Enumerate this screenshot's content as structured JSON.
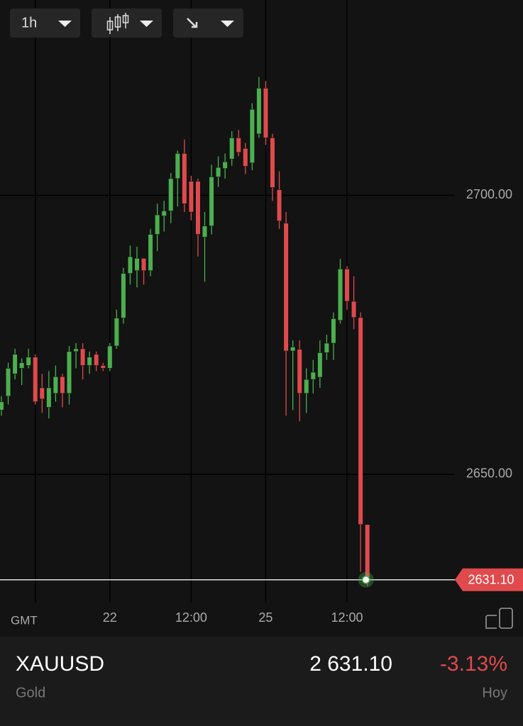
{
  "toolbar": {
    "interval": "1h"
  },
  "chart_data": {
    "type": "candlestick",
    "categories": [
      null,
      null,
      null,
      null,
      null,
      null,
      null,
      null,
      null,
      null,
      null,
      null,
      null,
      null,
      null,
      null,
      "22",
      null,
      null,
      null,
      null,
      null,
      null,
      null,
      null,
      null,
      null,
      null,
      "12:00",
      null,
      null,
      null,
      null,
      null,
      null,
      null,
      null,
      null,
      null,
      "25",
      null,
      null,
      null,
      null,
      null,
      null,
      null,
      null,
      null,
      null,
      null,
      "12:00",
      null,
      null,
      null
    ],
    "series": [
      {
        "name": "XAUUSD",
        "open": [
          2661.5,
          2664,
          2668,
          2669,
          2669.5,
          2671,
          2665.5,
          2662,
          2664.5,
          2667.5,
          2664.5,
          2672,
          2672.5,
          2669.5,
          2671.5,
          2669.5,
          2669,
          2673,
          2678,
          2686,
          2686.5,
          2688.7,
          2686.5,
          2693,
          2696.3,
          2697.2,
          2703,
          2707.5,
          2702.5,
          2702.5,
          2692.5,
          2694.5,
          2703.3,
          2704.8,
          2706.5,
          2710.3,
          2708.4,
          2705.8,
          2711,
          2719.2,
          2710.3,
          2701,
          2695,
          2672.1,
          2672.4,
          2664.5,
          2667,
          2667.4,
          2671.8,
          2673.5,
          2677.6,
          2686.8,
          2681,
          2678.1,
          2641
        ],
        "high": [
          2664,
          2670,
          2672.5,
          2670.8,
          2672.5,
          2671.5,
          2668,
          2668.5,
          2669.5,
          2668,
          2673,
          2673.5,
          2673.5,
          2672,
          2672,
          2670,
          2673.5,
          2679.5,
          2687,
          2691,
          2690.8,
          2688.7,
          2694,
          2698.5,
          2699,
          2704,
          2708,
          2710,
          2703.5,
          2703,
          2697,
          2705.5,
          2707,
          2707.5,
          2711.5,
          2711.7,
          2709.4,
          2716.5,
          2721.2,
          2720.5,
          2711,
          2704.3,
          2697,
          2674,
          2674,
          2669,
          2670.5,
          2674,
          2675,
          2679,
          2688.6,
          2687.3,
          2685.5,
          2679,
          2641
        ],
        "low": [
          2660.5,
          2662.5,
          2667,
          2666,
          2669,
          2662.5,
          2661,
          2660,
          2663,
          2662,
          2662.5,
          2669,
          2667,
          2668,
          2668.5,
          2668.5,
          2668.5,
          2672.5,
          2677,
          2684,
          2683.5,
          2684,
          2685.5,
          2690,
          2693.5,
          2695,
          2698,
          2697,
          2695.5,
          2689,
          2684.5,
          2693,
          2701.5,
          2703,
          2705.3,
          2707,
          2703.8,
          2704.5,
          2710.3,
          2709,
          2699,
          2694,
          2660.5,
          2661.5,
          2659.5,
          2661,
          2664.5,
          2665.5,
          2670.5,
          2670.5,
          2677,
          2679.5,
          2676,
          2632.5,
          2630
        ],
        "close": [
          2663,
          2669,
          2671.5,
          2670,
          2671,
          2663,
          2663.5,
          2665.5,
          2667.5,
          2664.5,
          2672,
          2672.5,
          2669.5,
          2671,
          2669.5,
          2669,
          2673,
          2678,
          2686,
          2689,
          2688.7,
          2686.5,
          2693,
          2696.5,
          2697.2,
          2703,
          2707.5,
          2698.5,
          2697,
          2693,
          2694.5,
          2703.3,
          2705,
          2706,
          2710.3,
          2707.7,
          2705.2,
          2715.4,
          2719.2,
          2710.3,
          2701.4,
          2695.4,
          2672.1,
          2672.8,
          2664.5,
          2667,
          2668.3,
          2671.8,
          2673.5,
          2677.9,
          2686.8,
          2681,
          2678.1,
          2641,
          2631.1
        ]
      }
    ],
    "up_color": "#4caf50",
    "down_color": "#e04a4d",
    "ylim": [
      2627,
      2735
    ],
    "yticks": [
      {
        "value": 2650,
        "label": "2650.00"
      },
      {
        "value": 2700,
        "label": "2700.00"
      }
    ],
    "grid": true,
    "timezone": "GMT",
    "last_price": {
      "value": 2631.1,
      "label": "2631.10"
    }
  },
  "footer": {
    "symbol": "XAUUSD",
    "name": "Gold",
    "price": "2 631.10",
    "change": "-3.13%",
    "period": "Hoy"
  }
}
